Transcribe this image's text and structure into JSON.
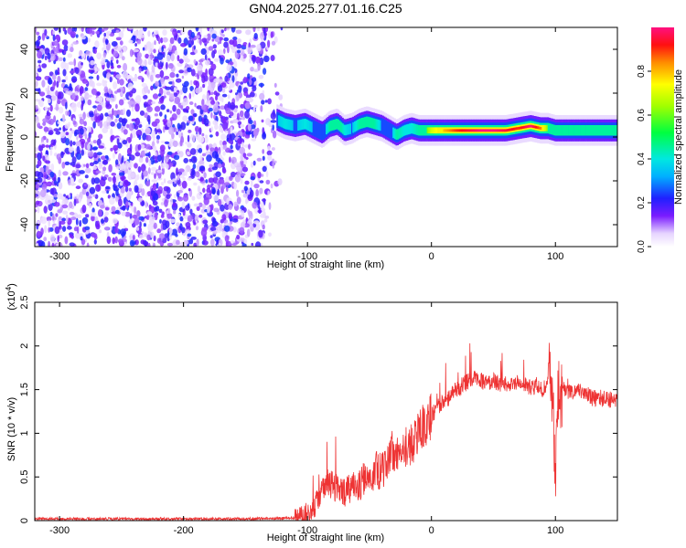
{
  "title": "GN04.2025.277.01.16.C25",
  "chart_data": [
    {
      "type": "heatmap",
      "title": "",
      "xlabel": "Height of straight line (km)",
      "ylabel": "Frequency (Hz)",
      "xlim": [
        -320,
        150
      ],
      "ylim": [
        -50,
        50
      ],
      "xticks": [
        -300,
        -200,
        -100,
        0,
        100
      ],
      "yticks": [
        -40,
        -20,
        0,
        20,
        40
      ],
      "noise_region_x": [
        -320,
        -120
      ],
      "ridge": {
        "x": [
          -125,
          -118,
          -110,
          -102,
          -95,
          -88,
          -82,
          -76,
          -70,
          -64,
          -58,
          -52,
          -46,
          -40,
          -34,
          -28,
          -22,
          -16,
          -10,
          -4,
          0,
          10,
          20,
          30,
          40,
          50,
          60,
          70,
          80,
          88,
          94,
          100,
          110,
          120,
          130,
          140,
          150
        ],
        "freq": [
          8,
          6,
          5,
          6,
          4,
          2,
          5,
          6,
          3,
          4,
          6,
          7,
          6,
          5,
          3,
          1,
          3,
          4,
          3,
          3,
          3,
          3,
          3,
          3,
          3,
          3,
          3,
          4,
          5,
          4,
          4,
          3,
          3,
          3,
          3,
          3,
          3
        ],
        "amplitude": [
          0.35,
          0.4,
          0.35,
          0.4,
          0.35,
          0.3,
          0.45,
          0.5,
          0.4,
          0.35,
          0.45,
          0.5,
          0.45,
          0.35,
          0.3,
          0.45,
          0.4,
          0.4,
          0.45,
          0.6,
          0.7,
          0.8,
          0.9,
          0.95,
          1.0,
          1.0,
          0.95,
          0.9,
          1.0,
          0.85,
          0.6,
          0.5,
          0.55,
          0.5,
          0.45,
          0.45,
          0.45
        ]
      },
      "colorbar": {
        "label": "Normalized spectral amplitude",
        "range": [
          0,
          1
        ],
        "ticks": [
          0.0,
          0.2,
          0.4,
          0.6,
          0.8
        ]
      }
    },
    {
      "type": "line",
      "title": "",
      "xlabel": "Height of straight line (km)",
      "ylabel": "SNR (10 * v/v)",
      "y_multiplier": "(x10",
      "y_multiplier_exp": "4",
      "y_multiplier_close": ")",
      "xlim": [
        -320,
        150
      ],
      "ylim": [
        0,
        2.5
      ],
      "xticks": [
        -300,
        -200,
        -100,
        0,
        100
      ],
      "yticks": [
        0.0,
        0.5,
        1.0,
        1.5,
        2.0,
        2.5
      ],
      "series": [
        {
          "color": "#ee3333",
          "x": [
            -320,
            -300,
            -250,
            -200,
            -150,
            -110,
            -100,
            -95,
            -90,
            -85,
            -80,
            -75,
            -70,
            -65,
            -60,
            -55,
            -50,
            -45,
            -40,
            -35,
            -30,
            -25,
            -20,
            -15,
            -10,
            -5,
            0,
            5,
            10,
            15,
            20,
            25,
            30,
            35,
            40,
            45,
            50,
            55,
            60,
            65,
            70,
            75,
            80,
            85,
            90,
            95,
            98,
            100,
            102,
            105,
            110,
            115,
            120,
            125,
            130,
            135,
            140,
            145,
            150
          ],
          "y": [
            0.02,
            0.02,
            0.02,
            0.02,
            0.02,
            0.03,
            0.08,
            0.15,
            0.3,
            0.45,
            0.4,
            0.35,
            0.3,
            0.4,
            0.35,
            0.5,
            0.45,
            0.6,
            0.55,
            0.7,
            0.8,
            0.7,
            0.85,
            0.9,
            1.0,
            1.1,
            1.2,
            1.3,
            1.35,
            1.42,
            1.5,
            1.55,
            1.6,
            1.62,
            1.6,
            1.58,
            1.6,
            1.57,
            1.58,
            1.55,
            1.58,
            1.55,
            1.52,
            1.55,
            1.5,
            1.6,
            1.3,
            0.4,
            1.4,
            1.5,
            1.48,
            1.45,
            1.5,
            1.45,
            1.4,
            1.4,
            1.4,
            1.38,
            1.35
          ]
        }
      ]
    }
  ]
}
